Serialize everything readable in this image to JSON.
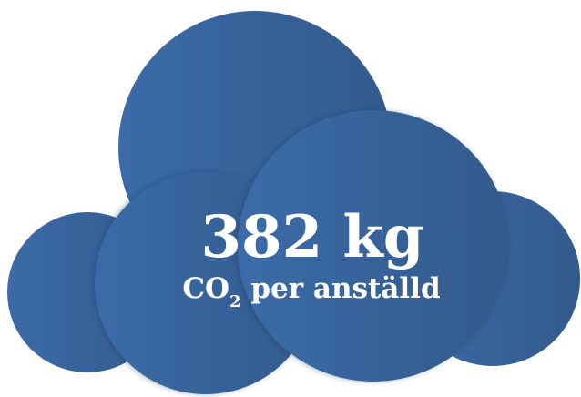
{
  "headline": "382 kg",
  "label": {
    "prefix": "CO",
    "subscript": "2",
    "suffix": " per anställd"
  }
}
